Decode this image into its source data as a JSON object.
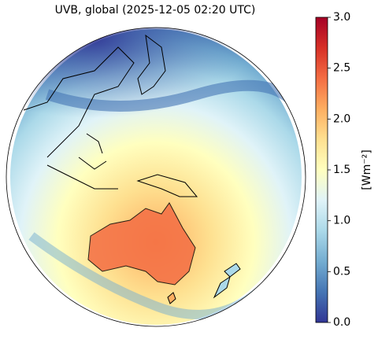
{
  "map": {
    "title": "UVB, global (2025-12-05 02:20 UTC)",
    "colorbar": {
      "label": "[Wm⁻²]",
      "lim": [
        0,
        3
      ],
      "colors": [
        "#313695",
        "#4575b4",
        "#74add1",
        "#abd9e9",
        "#e0f3f8",
        "#ffffbf",
        "#fee090",
        "#fdae61",
        "#f46d43",
        "#d73027",
        "#a50026"
      ],
      "ticks": [
        {
          "value": 0,
          "label": "0.0"
        },
        {
          "value": 0.5,
          "label": "0.5"
        },
        {
          "value": 1,
          "label": "1.0"
        },
        {
          "value": 1.5,
          "label": "1.5"
        },
        {
          "value": 2,
          "label": "2.0"
        },
        {
          "value": 2.5,
          "label": "2.5"
        },
        {
          "value": 3,
          "label": "3.0"
        }
      ]
    }
  }
}
